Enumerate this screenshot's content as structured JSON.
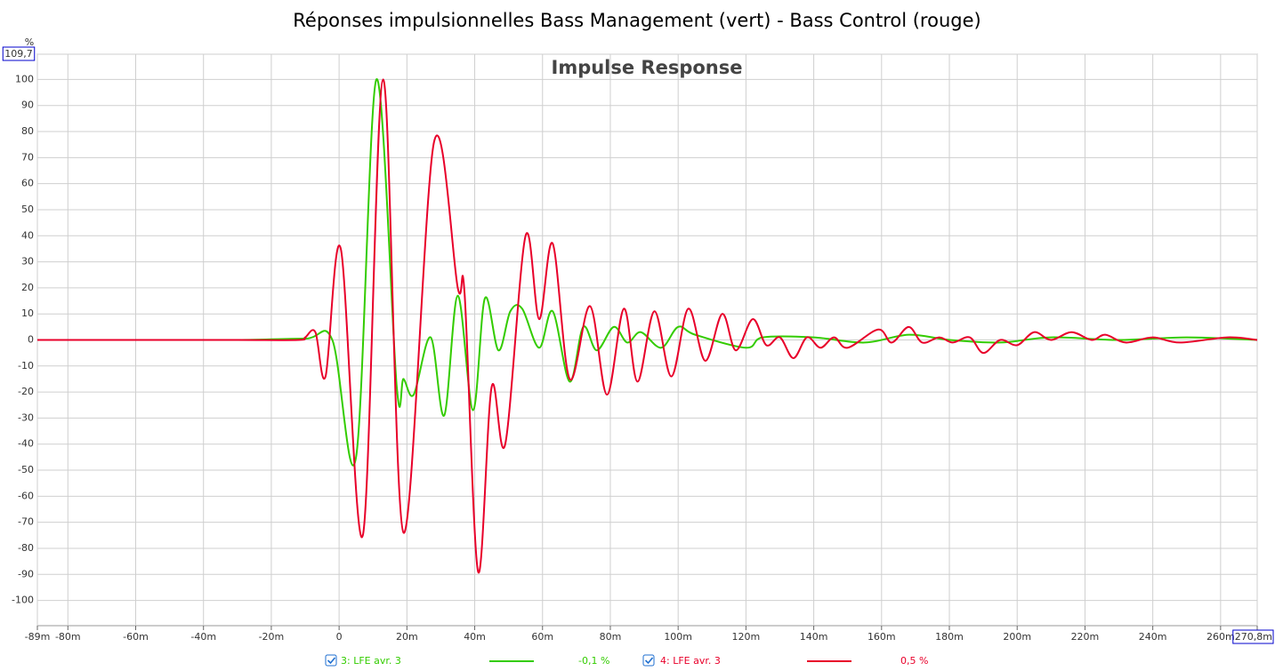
{
  "chart_data": {
    "type": "line",
    "title": "Réponses impulsionnelles Bass Management (vert) - Bass Control (rouge)",
    "subtitle": "Impulse Response",
    "y_unit": "%",
    "xlim": [
      -89,
      270.8
    ],
    "ylim": [
      -109.7,
      109.7
    ],
    "xticks": [
      {
        "value": -89,
        "label": "-89m"
      },
      {
        "value": -80,
        "label": "-80m"
      },
      {
        "value": -60,
        "label": "-60m"
      },
      {
        "value": -40,
        "label": "-40m"
      },
      {
        "value": -20,
        "label": "-20m"
      },
      {
        "value": 0,
        "label": "0"
      },
      {
        "value": 20,
        "label": "20m"
      },
      {
        "value": 40,
        "label": "40m"
      },
      {
        "value": 60,
        "label": "60m"
      },
      {
        "value": 80,
        "label": "80m"
      },
      {
        "value": 100,
        "label": "100m"
      },
      {
        "value": 120,
        "label": "120m"
      },
      {
        "value": 140,
        "label": "140m"
      },
      {
        "value": 160,
        "label": "160m"
      },
      {
        "value": 180,
        "label": "180m"
      },
      {
        "value": 200,
        "label": "200m"
      },
      {
        "value": 220,
        "label": "220m"
      },
      {
        "value": 240,
        "label": "240m"
      },
      {
        "value": 260,
        "label": "260m"
      },
      {
        "value": 270.8,
        "label": "270,8m"
      }
    ],
    "yticks": [
      {
        "value": 109.7,
        "label": "109,7"
      },
      100,
      90,
      80,
      70,
      60,
      50,
      40,
      30,
      20,
      10,
      0,
      -10,
      -20,
      -30,
      -40,
      -50,
      -60,
      -70,
      -80,
      -90,
      -100
    ],
    "grid": true,
    "series": [
      {
        "name": "3: LFE avr. 3",
        "readout": "-0,1 %",
        "color": "#33cc00",
        "x": [
          -89,
          -60,
          -30,
          -10,
          -2,
          5,
          11,
          17,
          19,
          22,
          27,
          31,
          35,
          39.5,
          43,
          47,
          50.5,
          54,
          59,
          63,
          68,
          72,
          76,
          81,
          85,
          89,
          95,
          100,
          105,
          120,
          125,
          140,
          155,
          168,
          180,
          195,
          210,
          230,
          250,
          270.8
        ],
        "values": [
          0,
          0,
          0,
          0.5,
          0,
          -45,
          100,
          -18,
          -15,
          -21,
          1,
          -29,
          17,
          -27,
          16,
          -4,
          11,
          12,
          -3,
          11,
          -16,
          5,
          -4,
          5,
          -1,
          3,
          -3,
          5,
          2,
          -3,
          1,
          1,
          -1,
          2,
          0,
          -1,
          1,
          0,
          1,
          0
        ]
      },
      {
        "name": "4: LFE avr. 3",
        "readout": "0,5 %",
        "color": "#e8002a",
        "x": [
          -89,
          -60,
          -30,
          -12,
          -10,
          -7,
          -4,
          0.5,
          7,
          13,
          19,
          28,
          35,
          37,
          41,
          45,
          49,
          55,
          59,
          63,
          68,
          74,
          79,
          84,
          88,
          93,
          98,
          103,
          108,
          113,
          117,
          122,
          126,
          130,
          134,
          138,
          142,
          146,
          150,
          159,
          163,
          168,
          172,
          177,
          181,
          186,
          190,
          195,
          200,
          205,
          210,
          216,
          222,
          226,
          232,
          240,
          248,
          262,
          270.8
        ],
        "values": [
          0,
          0,
          0,
          0,
          1,
          3,
          -14,
          35,
          -75,
          100,
          -74,
          76,
          20,
          18,
          -89,
          -18,
          -40,
          40,
          8,
          37,
          -15,
          13,
          -21,
          12,
          -16,
          11,
          -14,
          12,
          -8,
          10,
          -4,
          8,
          -2,
          1,
          -7,
          1,
          -3,
          1,
          -3,
          4,
          -1,
          5,
          -1,
          1,
          -1,
          1,
          -5,
          0,
          -2,
          3,
          0,
          3,
          0,
          2,
          -1,
          1,
          -1,
          1,
          0
        ]
      }
    ]
  }
}
